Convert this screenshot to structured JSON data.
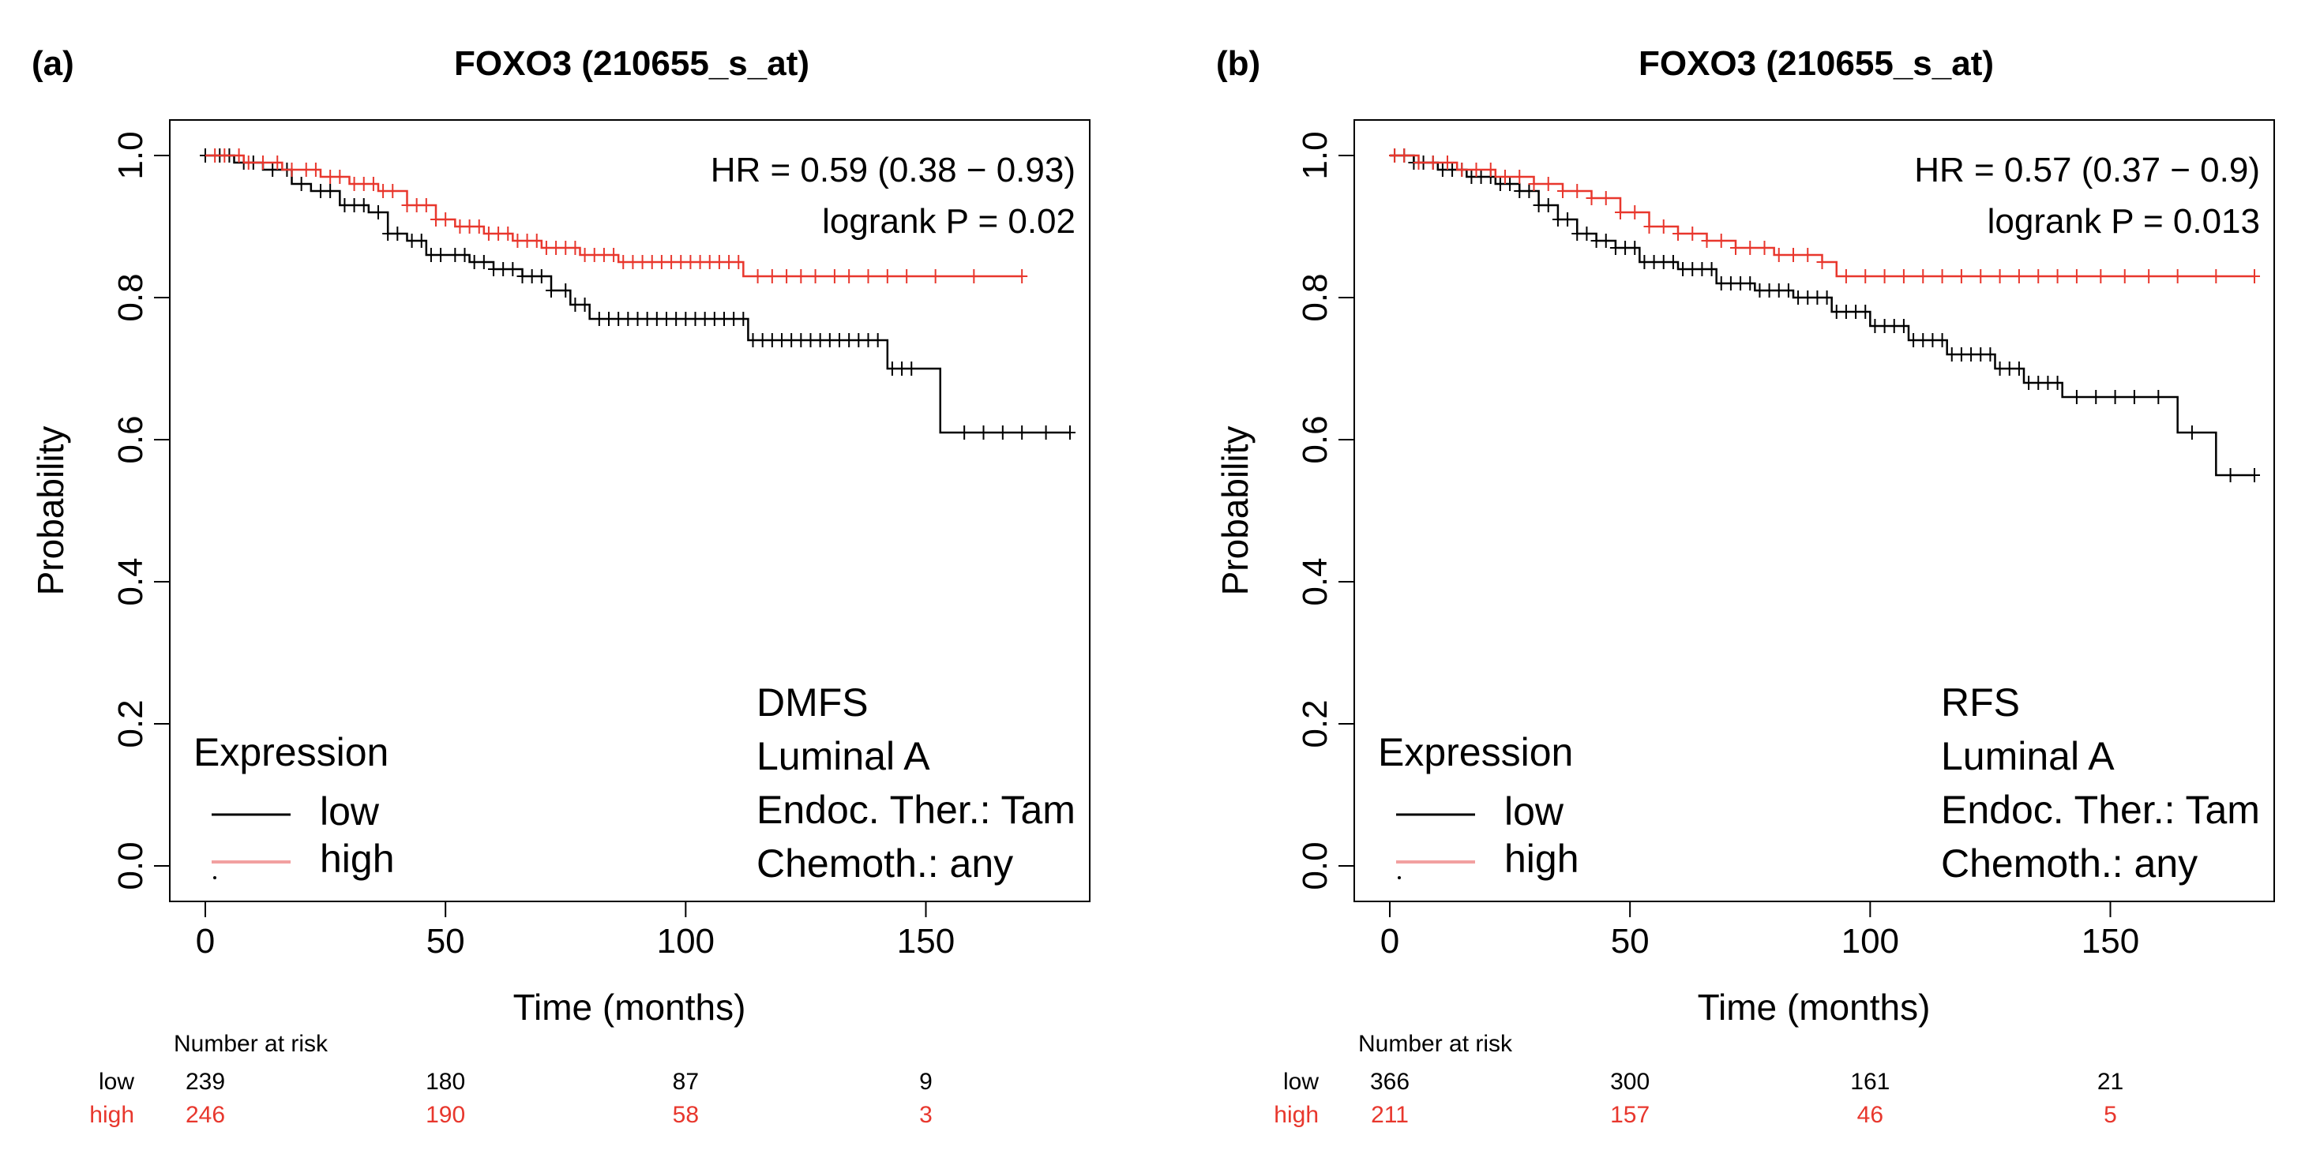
{
  "chart_data": [
    {
      "type": "line",
      "panel_label": "(a)",
      "title": "FOXO3 (210655_s_at)",
      "xlabel": "Time (months)",
      "ylabel": "Probability",
      "xlim": [
        0,
        185
      ],
      "ylim": [
        0,
        1.0
      ],
      "xticks": [
        0,
        50,
        100,
        150
      ],
      "yticks": [
        0.0,
        0.2,
        0.4,
        0.6,
        0.8,
        1.0
      ],
      "xtick_labels": [
        "0",
        "50",
        "100",
        "150"
      ],
      "ytick_labels": [
        "0.0",
        "0.2",
        "0.4",
        "0.6",
        "0.8",
        "1.0"
      ],
      "stats": [
        "HR = 0.59 (0.38 − 0.93)",
        "logrank P = 0.02"
      ],
      "info": [
        "DMFS",
        "Luminal A",
        "Endoc. Ther.: Tam",
        "Chemoth.: any"
      ],
      "legend_title": "Expression",
      "series": [
        {
          "name": "low",
          "color": "#000000",
          "steps": [
            [
              0,
              1.0
            ],
            [
              6,
              0.99
            ],
            [
              12,
              0.98
            ],
            [
              18,
              0.96
            ],
            [
              22,
              0.95
            ],
            [
              28,
              0.93
            ],
            [
              34,
              0.92
            ],
            [
              38,
              0.89
            ],
            [
              42,
              0.88
            ],
            [
              46,
              0.86
            ],
            [
              55,
              0.85
            ],
            [
              60,
              0.84
            ],
            [
              66,
              0.83
            ],
            [
              72,
              0.81
            ],
            [
              76,
              0.79
            ],
            [
              80,
              0.77
            ],
            [
              113,
              0.74
            ],
            [
              142,
              0.7
            ],
            [
              153,
              0.61
            ],
            [
              180,
              0.61
            ]
          ],
          "censors": [
            0,
            3,
            5,
            8,
            10,
            14,
            17,
            20,
            24,
            26,
            29,
            31,
            33,
            36,
            38,
            40,
            43,
            45,
            47,
            49,
            52,
            54,
            56,
            58,
            60,
            62,
            64,
            66,
            68,
            70,
            72,
            75,
            77,
            79,
            82,
            84,
            86,
            88,
            90,
            92,
            94,
            96,
            98,
            100,
            102,
            104,
            106,
            108,
            110,
            112,
            114,
            116,
            118,
            120,
            122,
            124,
            126,
            128,
            130,
            132,
            134,
            136,
            138,
            140,
            143,
            145,
            147,
            158,
            162,
            166,
            170,
            175,
            180
          ]
        },
        {
          "name": "high",
          "color": "#e8372d",
          "steps": [
            [
              0,
              1.0
            ],
            [
              8,
              0.99
            ],
            [
              16,
              0.98
            ],
            [
              24,
              0.97
            ],
            [
              30,
              0.96
            ],
            [
              36,
              0.95
            ],
            [
              42,
              0.93
            ],
            [
              48,
              0.91
            ],
            [
              52,
              0.9
            ],
            [
              58,
              0.89
            ],
            [
              64,
              0.88
            ],
            [
              70,
              0.87
            ],
            [
              78,
              0.86
            ],
            [
              86,
              0.85
            ],
            [
              112,
              0.83
            ],
            [
              170,
              0.83
            ]
          ],
          "censors": [
            2,
            4,
            7,
            9,
            12,
            15,
            18,
            21,
            23,
            26,
            28,
            31,
            33,
            35,
            37,
            39,
            42,
            44,
            46,
            48,
            50,
            53,
            55,
            57,
            59,
            61,
            63,
            65,
            67,
            69,
            71,
            73,
            75,
            77,
            79,
            81,
            83,
            85,
            87,
            89,
            91,
            93,
            95,
            97,
            99,
            101,
            103,
            105,
            107,
            109,
            111,
            115,
            118,
            121,
            124,
            127,
            131,
            134,
            138,
            142,
            146,
            152,
            160,
            170
          ]
        }
      ],
      "risk": {
        "header": "Number at risk",
        "times": [
          0,
          50,
          100,
          150
        ],
        "rows": [
          {
            "label": "low",
            "color": "#000000",
            "values": [
              "239",
              "180",
              "87",
              "9"
            ]
          },
          {
            "label": "high",
            "color": "#e8372d",
            "values": [
              "246",
              "190",
              "58",
              "3"
            ]
          }
        ]
      }
    },
    {
      "type": "line",
      "panel_label": "(b)",
      "title": "FOXO3 (210655_s_at)",
      "xlabel": "Time (months)",
      "ylabel": "Probability",
      "xlim": [
        0,
        185
      ],
      "ylim": [
        0,
        1.0
      ],
      "xticks": [
        0,
        50,
        100,
        150
      ],
      "yticks": [
        0.0,
        0.2,
        0.4,
        0.6,
        0.8,
        1.0
      ],
      "xtick_labels": [
        "0",
        "50",
        "100",
        "150"
      ],
      "ytick_labels": [
        "0.0",
        "0.2",
        "0.4",
        "0.6",
        "0.8",
        "1.0"
      ],
      "stats": [
        "HR = 0.57 (0.37 − 0.9)",
        "logrank P = 0.013"
      ],
      "info": [
        "RFS",
        "Luminal A",
        "Endoc. Ther.: Tam",
        "Chemoth.: any"
      ],
      "legend_title": "Expression",
      "series": [
        {
          "name": "low",
          "color": "#000000",
          "steps": [
            [
              0,
              1.0
            ],
            [
              5,
              0.99
            ],
            [
              10,
              0.98
            ],
            [
              16,
              0.97
            ],
            [
              22,
              0.96
            ],
            [
              27,
              0.95
            ],
            [
              31,
              0.93
            ],
            [
              35,
              0.91
            ],
            [
              39,
              0.89
            ],
            [
              43,
              0.88
            ],
            [
              47,
              0.87
            ],
            [
              52,
              0.85
            ],
            [
              60,
              0.84
            ],
            [
              68,
              0.82
            ],
            [
              76,
              0.81
            ],
            [
              84,
              0.8
            ],
            [
              92,
              0.78
            ],
            [
              100,
              0.76
            ],
            [
              108,
              0.74
            ],
            [
              116,
              0.72
            ],
            [
              126,
              0.7
            ],
            [
              132,
              0.68
            ],
            [
              140,
              0.66
            ],
            [
              164,
              0.61
            ],
            [
              172,
              0.55
            ],
            [
              180,
              0.55
            ]
          ],
          "censors": [
            1,
            3,
            5,
            7,
            9,
            11,
            13,
            15,
            17,
            19,
            21,
            23,
            25,
            27,
            29,
            31,
            33,
            35,
            37,
            39,
            41,
            43,
            45,
            47,
            49,
            51,
            53,
            55,
            57,
            59,
            61,
            63,
            65,
            67,
            69,
            71,
            73,
            75,
            77,
            79,
            81,
            83,
            85,
            87,
            89,
            91,
            93,
            95,
            97,
            99,
            101,
            103,
            105,
            107,
            109,
            111,
            113,
            115,
            117,
            119,
            121,
            123,
            125,
            127,
            129,
            131,
            133,
            135,
            137,
            139,
            143,
            147,
            151,
            155,
            160,
            167,
            175,
            180
          ]
        },
        {
          "name": "high",
          "color": "#e8372d",
          "steps": [
            [
              0,
              1.0
            ],
            [
              6,
              0.99
            ],
            [
              14,
              0.98
            ],
            [
              22,
              0.97
            ],
            [
              30,
              0.96
            ],
            [
              36,
              0.95
            ],
            [
              42,
              0.94
            ],
            [
              48,
              0.92
            ],
            [
              54,
              0.9
            ],
            [
              60,
              0.89
            ],
            [
              66,
              0.88
            ],
            [
              72,
              0.87
            ],
            [
              80,
              0.86
            ],
            [
              90,
              0.85
            ],
            [
              93,
              0.83
            ],
            [
              180,
              0.83
            ]
          ],
          "censors": [
            1,
            3,
            6,
            9,
            12,
            15,
            18,
            21,
            24,
            27,
            30,
            33,
            36,
            39,
            42,
            45,
            48,
            51,
            54,
            57,
            60,
            63,
            66,
            69,
            72,
            75,
            78,
            81,
            84,
            87,
            90,
            95,
            99,
            103,
            107,
            111,
            115,
            119,
            123,
            127,
            131,
            135,
            139,
            143,
            148,
            153,
            158,
            164,
            172,
            180
          ]
        }
      ],
      "risk": {
        "header": "Number at risk",
        "times": [
          0,
          50,
          100,
          150
        ],
        "rows": [
          {
            "label": "low",
            "color": "#000000",
            "values": [
              "366",
              "300",
              "161",
              "21"
            ]
          },
          {
            "label": "high",
            "color": "#e8372d",
            "values": [
              "211",
              "157",
              "46",
              "5"
            ]
          }
        ]
      }
    }
  ]
}
